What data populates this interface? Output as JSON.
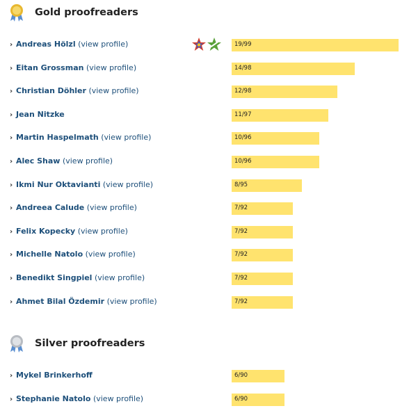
{
  "sections": [
    {
      "title": "Gold proofreaders",
      "medal": "gold-medal-icon",
      "rows": [
        {
          "name": "Andreas Hölzl",
          "profile": "(view profile)",
          "value": "19/99",
          "ratio": 1.0,
          "badges": true
        },
        {
          "name": "Eitan Grossman",
          "profile": "(view profile)",
          "value": "14/98",
          "ratio": 0.737
        },
        {
          "name": "Christian Döhler",
          "profile": "(view profile)",
          "value": "12/98",
          "ratio": 0.632
        },
        {
          "name": "Jean Nitzke",
          "profile": "",
          "value": "11/97",
          "ratio": 0.579
        },
        {
          "name": "Martin Haspelmath",
          "profile": "(view profile)",
          "value": "10/96",
          "ratio": 0.526
        },
        {
          "name": "Alec Shaw",
          "profile": "(view profile)",
          "value": "10/96",
          "ratio": 0.526
        },
        {
          "name": "Ikmi Nur Oktavianti",
          "profile": "(view profile)",
          "value": "8/95",
          "ratio": 0.421
        },
        {
          "name": "Andreea Calude",
          "profile": "(view profile)",
          "value": "7/92",
          "ratio": 0.368
        },
        {
          "name": "Felix Kopecky",
          "profile": "(view profile)",
          "value": "7/92",
          "ratio": 0.368
        },
        {
          "name": "Michelle Natolo",
          "profile": "(view profile)",
          "value": "7/92",
          "ratio": 0.368
        },
        {
          "name": "Benedikt Singpiel",
          "profile": "(view profile)",
          "value": "7/92",
          "ratio": 0.368
        },
        {
          "name": "Ahmet Bilal Özdemir",
          "profile": "(view profile)",
          "value": "7/92",
          "ratio": 0.368
        }
      ]
    },
    {
      "title": "Silver proofreaders",
      "medal": "silver-medal-icon",
      "rows": [
        {
          "name": "Mykel Brinkerhoff",
          "profile": "",
          "value": "6/90",
          "ratio": 0.316
        },
        {
          "name": "Stephanie Natolo",
          "profile": "(view profile)",
          "value": "6/90",
          "ratio": 0.316
        }
      ]
    }
  ],
  "colors": {
    "bar": "#ffe36e",
    "link": "#1d4f7a",
    "gold": "#e8b830",
    "silver": "#b8bcc2",
    "ribbon": "#5b8fd0"
  }
}
